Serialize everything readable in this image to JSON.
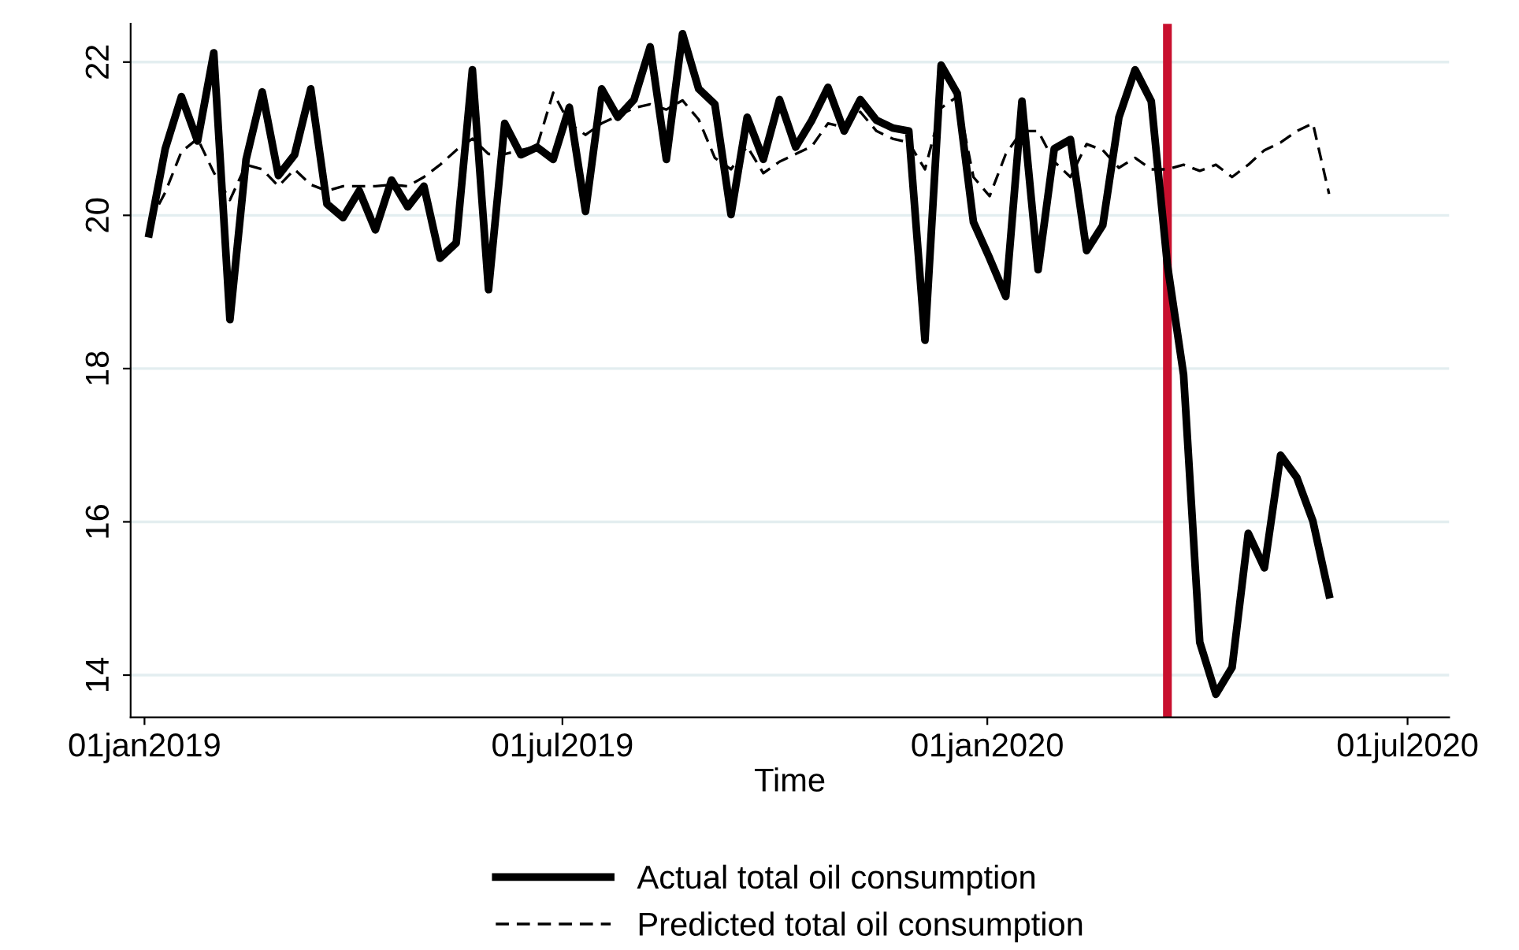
{
  "chart_data": {
    "type": "line",
    "xlabel": "Time",
    "x": [
      "2019-01-03",
      "2019-01-10",
      "2019-01-17",
      "2019-01-24",
      "2019-01-31",
      "2019-02-07",
      "2019-02-14",
      "2019-02-21",
      "2019-02-28",
      "2019-03-07",
      "2019-03-14",
      "2019-03-21",
      "2019-03-28",
      "2019-04-04",
      "2019-04-11",
      "2019-04-18",
      "2019-04-25",
      "2019-05-02",
      "2019-05-09",
      "2019-05-16",
      "2019-05-23",
      "2019-05-30",
      "2019-06-06",
      "2019-06-13",
      "2019-06-20",
      "2019-06-27",
      "2019-07-04",
      "2019-07-11",
      "2019-07-18",
      "2019-07-25",
      "2019-08-01",
      "2019-08-08",
      "2019-08-15",
      "2019-08-22",
      "2019-08-29",
      "2019-09-05",
      "2019-09-12",
      "2019-09-19",
      "2019-09-26",
      "2019-10-03",
      "2019-10-10",
      "2019-10-17",
      "2019-10-24",
      "2019-10-31",
      "2019-11-07",
      "2019-11-14",
      "2019-11-21",
      "2019-11-28",
      "2019-12-05",
      "2019-12-12",
      "2019-12-19",
      "2019-12-26",
      "2020-01-02",
      "2020-01-09",
      "2020-01-16",
      "2020-01-23",
      "2020-01-30",
      "2020-02-06",
      "2020-02-13",
      "2020-02-20",
      "2020-02-27",
      "2020-03-05",
      "2020-03-12",
      "2020-03-19",
      "2020-03-26",
      "2020-04-02",
      "2020-04-09",
      "2020-04-16",
      "2020-04-23",
      "2020-04-30",
      "2020-05-07",
      "2020-05-14",
      "2020-05-21",
      "2020-05-28"
    ],
    "series": [
      {
        "name": "Actual total oil consumption",
        "color": "#000000",
        "line_style": "solid",
        "values": [
          19.76,
          20.87,
          21.55,
          20.97,
          22.12,
          18.64,
          20.73,
          21.61,
          20.52,
          20.79,
          21.65,
          20.15,
          19.97,
          20.32,
          19.81,
          20.46,
          20.11,
          20.38,
          19.44,
          19.64,
          21.9,
          19.03,
          21.2,
          20.79,
          20.89,
          20.73,
          21.41,
          20.05,
          21.65,
          21.28,
          21.51,
          22.2,
          20.73,
          22.37,
          21.65,
          21.45,
          20.01,
          21.28,
          20.73,
          21.51,
          20.89,
          21.24,
          21.67,
          21.1,
          21.51,
          21.24,
          21.14,
          21.1,
          18.37,
          21.96,
          21.59,
          19.91,
          19.44,
          18.94,
          21.49,
          19.29,
          20.87,
          20.99,
          19.54,
          19.87,
          21.28,
          21.9,
          21.49,
          19.35,
          17.92,
          14.43,
          13.75,
          14.1,
          15.85,
          15.4,
          16.87,
          16.58,
          16.01,
          15.05
        ]
      },
      {
        "name": "Predicted total oil consumption",
        "color": "#000000",
        "line_style": "dashed",
        "values": [
          19.9,
          20.3,
          20.83,
          21.0,
          20.56,
          20.2,
          20.66,
          20.6,
          20.38,
          20.6,
          20.4,
          20.32,
          20.38,
          20.38,
          20.38,
          20.4,
          20.38,
          20.5,
          20.66,
          20.85,
          21.0,
          20.8,
          20.8,
          20.85,
          20.9,
          21.6,
          21.2,
          21.05,
          21.2,
          21.3,
          21.4,
          21.45,
          21.38,
          21.5,
          21.25,
          20.75,
          20.6,
          20.9,
          20.55,
          20.7,
          20.8,
          20.9,
          21.2,
          21.15,
          21.35,
          21.1,
          21.0,
          20.95,
          20.6,
          21.4,
          21.55,
          20.5,
          20.25,
          20.8,
          21.1,
          21.1,
          20.7,
          20.5,
          20.93,
          20.85,
          20.62,
          20.75,
          20.6,
          20.6,
          20.66,
          20.58,
          20.66,
          20.5,
          20.66,
          20.85,
          20.95,
          21.1,
          21.2,
          20.28
        ]
      }
    ],
    "xlim": [
      "2018-12-26",
      "2020-07-19"
    ],
    "ylim": [
      13.45,
      22.5
    ],
    "xticks": [
      {
        "value": "2019-01-01",
        "label": "01jan2019"
      },
      {
        "value": "2019-07-01",
        "label": "01jul2019"
      },
      {
        "value": "2020-01-01",
        "label": "01jan2020"
      },
      {
        "value": "2020-07-01",
        "label": "01jul2020"
      }
    ],
    "yticks": [
      14,
      16,
      18,
      20,
      22
    ],
    "ref_lines": [
      {
        "axis": "x",
        "value": "2020-03-19",
        "color": "#c8102e"
      }
    ],
    "grid": "y",
    "legend": "bottom",
    "marker": "none"
  }
}
